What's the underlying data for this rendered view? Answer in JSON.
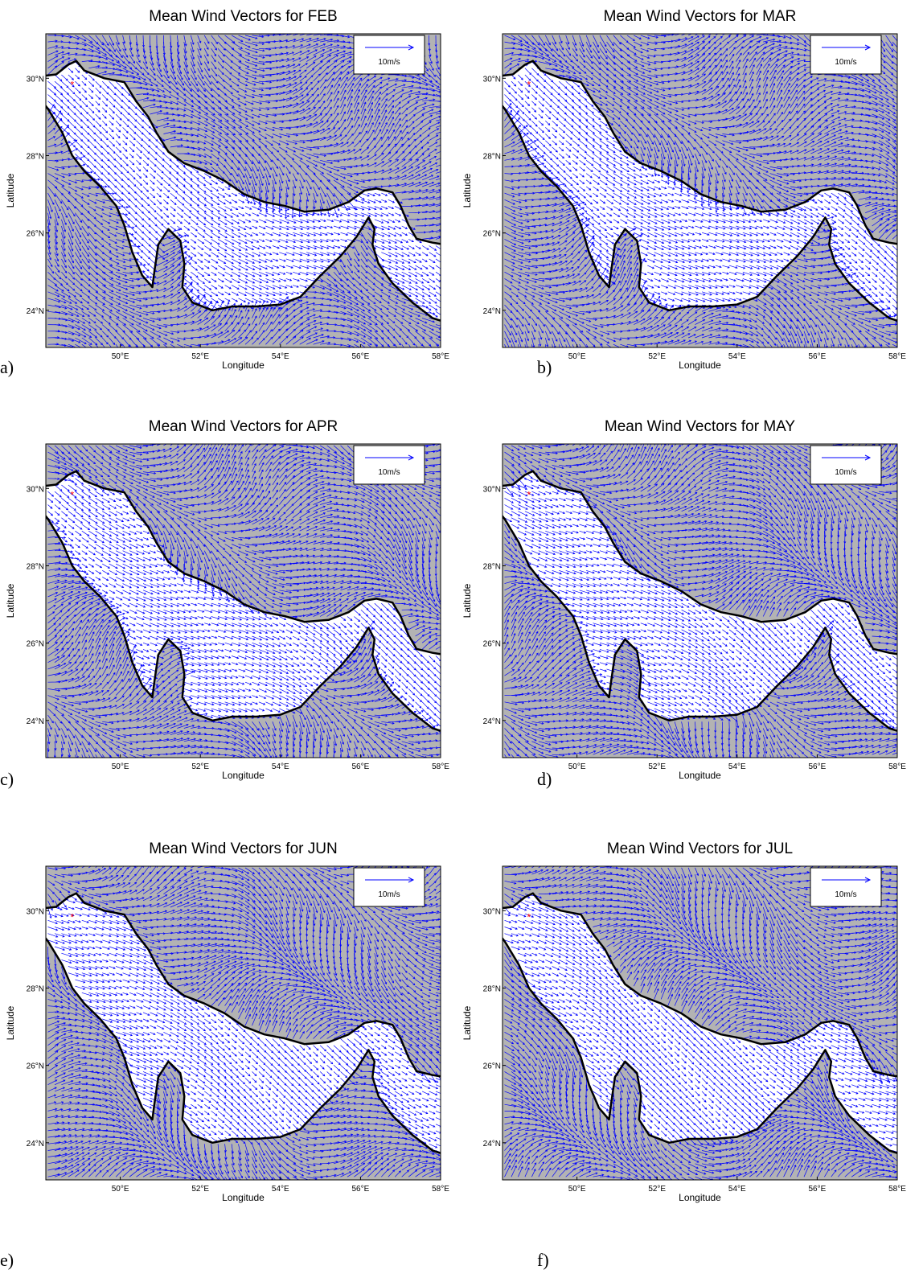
{
  "panels": [
    {
      "title": "Mean Wind Vectors for FEB",
      "label": "a)"
    },
    {
      "title": "Mean Wind Vectors for MAR",
      "label": "b)"
    },
    {
      "title": "Mean Wind Vectors for APR",
      "label": "c)"
    },
    {
      "title": "Mean Wind Vectors for MAY",
      "label": "d)"
    },
    {
      "title": "Mean Wind Vectors for JUN",
      "label": "e)"
    },
    {
      "title": "Mean Wind Vectors for JUL",
      "label": "f)"
    }
  ],
  "axes": {
    "x_label": "Longitude",
    "y_label": "Latitude",
    "legend": "10m/s",
    "xticks": [
      {
        "value": 50,
        "label": "50°E"
      },
      {
        "value": 52,
        "label": "52°E"
      },
      {
        "value": 54,
        "label": "54°E"
      },
      {
        "value": 56,
        "label": "56°E"
      },
      {
        "value": 58,
        "label": "58°E"
      }
    ],
    "yticks": [
      {
        "value": 24,
        "label": "24°N"
      },
      {
        "value": 26,
        "label": "26°N"
      },
      {
        "value": 28,
        "label": "28°N"
      },
      {
        "value": 30,
        "label": "30°N"
      }
    ]
  }
}
